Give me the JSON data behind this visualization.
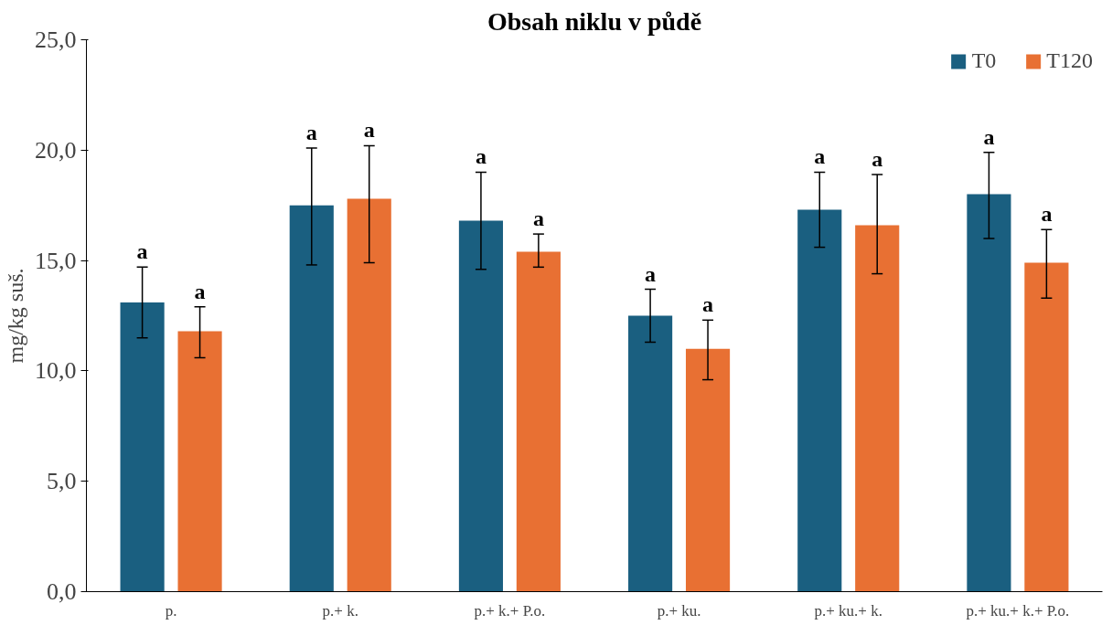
{
  "chart_data": {
    "type": "bar",
    "title": "Obsah niklu v půdě",
    "ylabel": "mg/kg suš.",
    "categories": [
      "p.",
      "p.+ k.",
      "p.+ k.+ P.o.",
      "p.+ ku.",
      "p.+ ku.+ k.",
      "p.+ ku.+ k.+ P.o."
    ],
    "series": [
      {
        "name": "T0",
        "color": "#1a5f80",
        "values": [
          13.1,
          17.5,
          16.8,
          12.5,
          17.3,
          18.0
        ],
        "errors": [
          [
            11.5,
            14.7
          ],
          [
            14.8,
            20.1
          ],
          [
            14.6,
            19.0
          ],
          [
            11.3,
            13.7
          ],
          [
            15.6,
            19.0
          ],
          [
            16.0,
            19.9
          ]
        ],
        "value_labels": [
          "a",
          "a",
          "a",
          "a",
          "a",
          "a"
        ]
      },
      {
        "name": "T120",
        "color": "#e87033",
        "values": [
          11.8,
          17.8,
          15.4,
          11.0,
          16.6,
          14.9
        ],
        "errors": [
          [
            10.6,
            12.9
          ],
          [
            14.9,
            20.2
          ],
          [
            14.7,
            16.2
          ],
          [
            9.6,
            12.3
          ],
          [
            14.4,
            18.9
          ],
          [
            13.3,
            16.4
          ]
        ],
        "value_labels": [
          "a",
          "a",
          "a",
          "a",
          "a",
          "a"
        ]
      }
    ],
    "ylim": [
      0,
      25
    ],
    "yticks": [
      {
        "value": 0,
        "label": "0,0"
      },
      {
        "value": 5,
        "label": "5,0"
      },
      {
        "value": 10,
        "label": "10,0"
      },
      {
        "value": 15,
        "label": "15,0"
      },
      {
        "value": 20,
        "label": "20,0"
      },
      {
        "value": 25,
        "label": "25,0"
      }
    ],
    "grid": false,
    "legend": "top right"
  }
}
